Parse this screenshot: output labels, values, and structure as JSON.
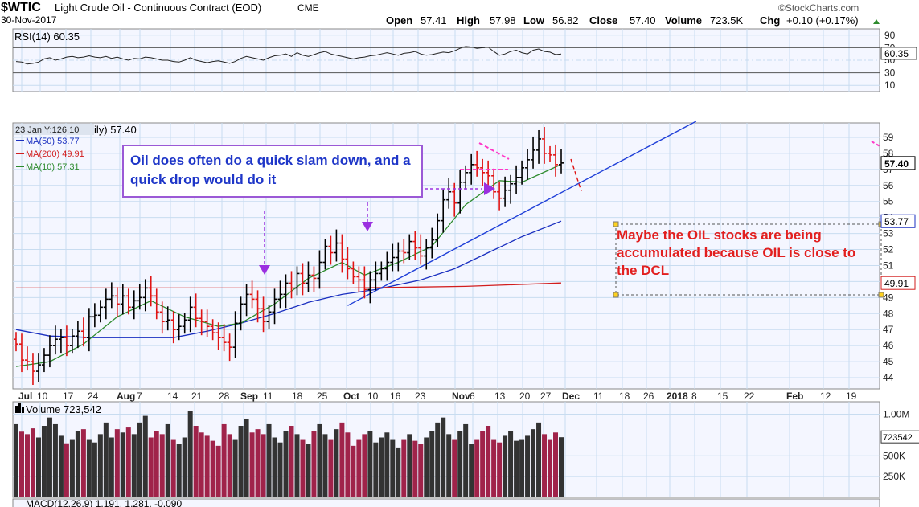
{
  "header": {
    "symbol": "$WTIC",
    "name": "Light Crude Oil - Continuous Contract (EOD)",
    "exchange": "CME",
    "date": "30-Nov-2017",
    "brand": "©StockCharts.com",
    "ohlc": {
      "open_label": "Open",
      "open": "57.41",
      "high_label": "High",
      "high": "57.98",
      "low_label": "Low",
      "low": "56.82",
      "close_label": "Close",
      "close": "57.40",
      "volume_label": "Volume",
      "volume": "723.5K",
      "chg_label": "Chg",
      "chg": "+0.10 (+0.17%)"
    }
  },
  "colors": {
    "up": "#000000",
    "down": "#e01414",
    "ma50": "#1a2fc0",
    "ma200": "#d21e1e",
    "ma10": "#2e8b2e",
    "trendline": "#1f3fd8",
    "grid": "#c8dcf0",
    "vol_up": "#333333",
    "vol_down": "#a0234a"
  },
  "chart_data": {
    "type": "candlestick",
    "title": "$WTIC Light Crude Oil - Continuous Contract (EOD) CME",
    "last_close": 57.4,
    "ylim": [
      43.3,
      59.9
    ],
    "price_ticks": [
      "59",
      "58",
      "57",
      "56",
      "55",
      "54",
      "53",
      "52",
      "51",
      "50",
      "49",
      "48",
      "47",
      "46",
      "45",
      "44"
    ],
    "x_labels": [
      "Jul",
      "10",
      "17",
      "24",
      "Aug",
      "7",
      "14",
      "21",
      "28",
      "Sep",
      "11",
      "18",
      "25",
      "Oct",
      "10",
      "16",
      "23",
      "Nov",
      "6",
      "13",
      "20",
      "27",
      "Dec",
      "11",
      "18",
      "26",
      "2018",
      "8",
      "15",
      "22",
      "Feb",
      "12",
      "19"
    ],
    "closes": [
      46.1,
      45.1,
      45.0,
      44.4,
      44.8,
      45.4,
      46.0,
      46.4,
      46.5,
      46.0,
      46.6,
      46.9,
      46.5,
      47.8,
      47.9,
      48.4,
      48.9,
      49.1,
      48.6,
      49.1,
      48.4,
      48.8,
      49.0,
      49.6,
      49.1,
      48.1,
      47.5,
      47.6,
      47.0,
      47.2,
      47.6,
      48.4,
      47.7,
      47.5,
      47.2,
      46.8,
      46.5,
      46.2,
      45.9,
      47.4,
      48.6,
      49.2,
      48.9,
      48.3,
      47.5,
      48.1,
      48.9,
      49.2,
      49.9,
      49.6,
      50.5,
      49.9,
      50.4,
      50.2,
      51.2,
      52.2,
      51.8,
      52.4,
      51.4,
      50.8,
      50.3,
      50.1,
      49.5,
      50.1,
      50.5,
      50.8,
      51.2,
      51.5,
      51.9,
      51.8,
      52.5,
      52.1,
      51.6,
      52.1,
      52.6,
      53.8,
      55.1,
      55.6,
      54.9,
      56.2,
      56.8,
      57.3,
      57.1,
      56.8,
      56.6,
      55.6,
      55.2,
      55.7,
      56.1,
      56.5,
      57.1,
      57.6,
      58.2,
      58.9,
      58.0,
      57.9,
      57.3,
      57.4
    ],
    "moving_averages": [
      {
        "label": "MA(50) 53.77",
        "value": 53.77,
        "points": [
          [
            0,
            47.0
          ],
          [
            6,
            46.6
          ],
          [
            14,
            46.5
          ],
          [
            20,
            46.5
          ],
          [
            28,
            46.5
          ],
          [
            34,
            46.9
          ],
          [
            40,
            47.4
          ],
          [
            46,
            48.0
          ],
          [
            52,
            48.7
          ],
          [
            58,
            49.2
          ],
          [
            64,
            49.5
          ],
          [
            72,
            50.1
          ],
          [
            78,
            50.8
          ],
          [
            84,
            51.8
          ],
          [
            90,
            52.8
          ],
          [
            97,
            53.77
          ]
        ]
      },
      {
        "label": "MA(200) 49.91",
        "value": 49.91,
        "points": [
          [
            0,
            49.6
          ],
          [
            20,
            49.6
          ],
          [
            40,
            49.6
          ],
          [
            60,
            49.6
          ],
          [
            80,
            49.7
          ],
          [
            97,
            49.91
          ]
        ]
      },
      {
        "label": "MA(10) 57.31",
        "value": 57.31,
        "points": [
          [
            0,
            44.7
          ],
          [
            6,
            45.0
          ],
          [
            12,
            46.1
          ],
          [
            18,
            47.8
          ],
          [
            24,
            48.8
          ],
          [
            30,
            47.8
          ],
          [
            36,
            47.2
          ],
          [
            40,
            47.4
          ],
          [
            46,
            48.6
          ],
          [
            52,
            50.2
          ],
          [
            58,
            51.2
          ],
          [
            62,
            50.4
          ],
          [
            68,
            51.2
          ],
          [
            74,
            52.2
          ],
          [
            80,
            54.8
          ],
          [
            86,
            56.3
          ],
          [
            90,
            56.2
          ],
          [
            97,
            57.31
          ]
        ]
      }
    ],
    "trendline": [
      [
        59,
        48.5
      ],
      [
        121,
        60.0
      ]
    ],
    "rsi": {
      "label": "RSI(14) 60.35",
      "value": "60.35",
      "ticks": [
        "90",
        "70",
        "50",
        "30",
        "10"
      ],
      "values": [
        48,
        47,
        44,
        45,
        47,
        52,
        54,
        50,
        52,
        55,
        56,
        54,
        55,
        57,
        55,
        54,
        56,
        53,
        55,
        52,
        50,
        53,
        52,
        55,
        54,
        52,
        50,
        50,
        48,
        47,
        50,
        54,
        50,
        48,
        46,
        48,
        49,
        47,
        45,
        48,
        53,
        56,
        54,
        52,
        50,
        54,
        57,
        58,
        60,
        56,
        62,
        58,
        56,
        59,
        62,
        64,
        60,
        58,
        56,
        54,
        52,
        54,
        55,
        57,
        58,
        60,
        62,
        60,
        58,
        61,
        62,
        64,
        60,
        58,
        59,
        61,
        63,
        62,
        65,
        69,
        72,
        71,
        69,
        70,
        71,
        64,
        58,
        60,
        64,
        66,
        62,
        60,
        66,
        68,
        64,
        63,
        59,
        60
      ]
    },
    "volume": {
      "label": "Volume 723,542",
      "value": "723542",
      "ticks": [
        "1.00M",
        "500K",
        "250K"
      ],
      "values": [
        880,
        790,
        760,
        830,
        720,
        860,
        960,
        880,
        740,
        650,
        700,
        800,
        820,
        700,
        660,
        760,
        900,
        720,
        820,
        780,
        840,
        760,
        900,
        980,
        720,
        800,
        760,
        880,
        700,
        640,
        720,
        1040,
        860,
        780,
        740,
        680,
        620,
        880,
        760,
        700,
        860,
        940,
        780,
        820,
        760,
        880,
        720,
        660,
        800,
        860,
        760,
        700,
        640,
        800,
        880,
        760,
        700,
        820,
        900,
        780,
        620,
        700,
        760,
        800,
        660,
        720,
        780,
        700,
        600,
        700,
        760,
        680,
        640,
        720,
        800,
        900,
        960,
        760,
        700,
        800,
        880,
        640,
        700,
        800,
        860,
        700,
        660,
        740,
        800,
        680,
        700,
        740,
        820,
        900,
        760,
        700,
        780,
        723
      ]
    },
    "macd_label": "MACD(12,26,9) 1.191, 1.281, -0.090",
    "annotations": {
      "note1": "Oil does often do a quick slam down, and a quick drop would do it",
      "note2": "Maybe the OIL stocks are being accumulated because OIL is close to the DCL"
    },
    "crosshair_label": "23 Jan Y:126.10",
    "price_pane_partial_label": "ily) 57.40",
    "price_badges": {
      "close": "57.40",
      "ma50": "53.77",
      "ma200": "49.91"
    }
  }
}
